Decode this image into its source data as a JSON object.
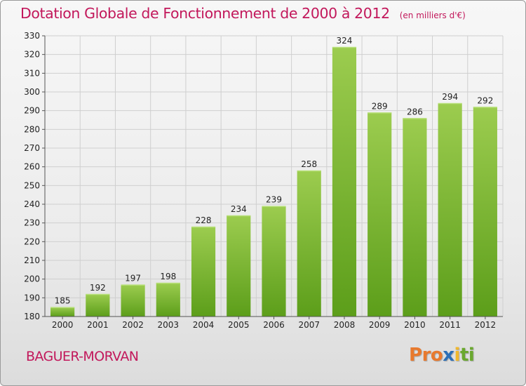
{
  "header": {
    "title": "Dotation Globale de Fonctionnement de 2000 à 2012",
    "unit": "(en milliers d'€)"
  },
  "footer": {
    "commune": "BAGUER-MORVAN",
    "logo": [
      "P",
      "r",
      "o",
      "x",
      "i",
      "t",
      "i"
    ]
  },
  "colors": {
    "title": "#c2185b",
    "bar_top": "#9ccc4f",
    "bar_bottom": "#5c9e1a",
    "grid": "#cfcfcf",
    "logo": [
      "#e8792d",
      "#e8792d",
      "#e8792d",
      "#2b6fb7",
      "#f0b82c",
      "#6aa82e",
      "#6aa82e"
    ]
  },
  "chart_data": {
    "type": "bar",
    "title": "Dotation Globale de Fonctionnement de 2000 à 2012",
    "subtitle": "(en milliers d'€)",
    "categories": [
      "2000",
      "2001",
      "2002",
      "2003",
      "2004",
      "2005",
      "2006",
      "2007",
      "2008",
      "2009",
      "2010",
      "2011",
      "2012"
    ],
    "values": [
      185,
      192,
      197,
      198,
      228,
      234,
      239,
      258,
      324,
      289,
      286,
      294,
      292
    ],
    "xlabel": "",
    "ylabel": "",
    "ylim": [
      180,
      330
    ],
    "yticks": [
      180,
      190,
      200,
      210,
      220,
      230,
      240,
      250,
      260,
      270,
      280,
      290,
      300,
      310,
      320,
      330
    ],
    "grid": true,
    "legend": "none",
    "data_labels": true
  }
}
